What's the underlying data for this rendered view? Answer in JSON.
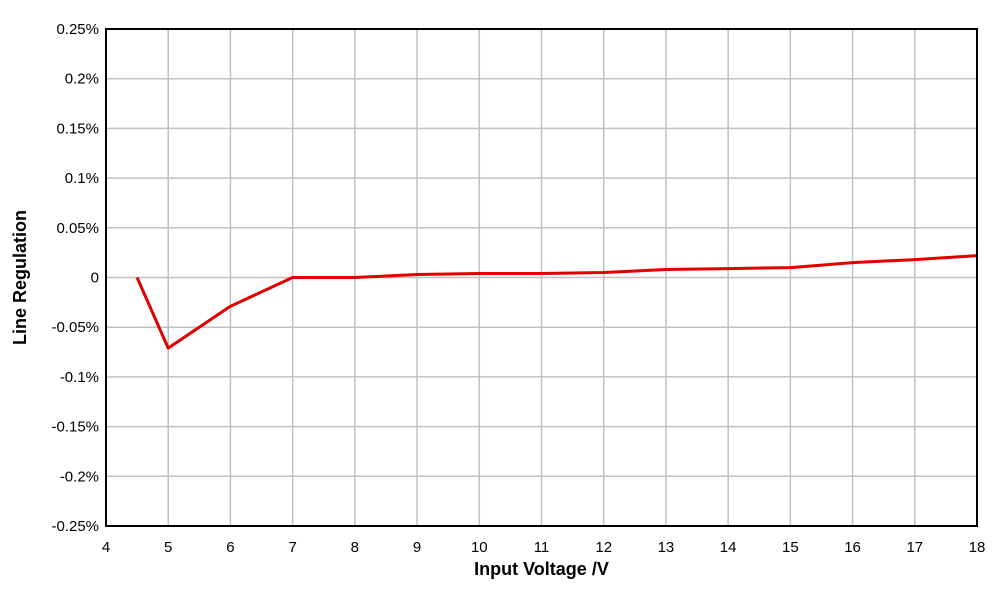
{
  "chart_data": {
    "type": "line",
    "title": "",
    "xlabel": "Input Voltage /V",
    "ylabel": "Line Regulation",
    "xlim": [
      4,
      18
    ],
    "ylim": [
      -0.25,
      0.25
    ],
    "x_ticks": [
      4,
      5,
      6,
      7,
      8,
      9,
      10,
      11,
      12,
      13,
      14,
      15,
      16,
      17,
      18
    ],
    "x_tick_labels": [
      "4",
      "5",
      "6",
      "7",
      "8",
      "9",
      "10",
      "11",
      "12",
      "13",
      "14",
      "15",
      "16",
      "17",
      "18"
    ],
    "y_ticks": [
      0.25,
      0.2,
      0.15,
      0.1,
      0.05,
      0,
      -0.05,
      -0.1,
      -0.15,
      -0.2,
      -0.25
    ],
    "y_tick_labels": [
      "0.25%",
      "0.2%",
      "0.15%",
      "0.1%",
      "0.05%",
      "0",
      "-0.05%",
      "-0.1%",
      "-0.15%",
      "-0.2%",
      "-0.25%"
    ],
    "grid": true,
    "legend": "none",
    "series": [
      {
        "color": "#e00000",
        "x": [
          4.5,
          5,
          6,
          7,
          8,
          9,
          10,
          11,
          12,
          13,
          14,
          15,
          16,
          17,
          18
        ],
        "y": [
          0.0,
          -0.071,
          -0.029,
          0.0,
          0.0,
          0.003,
          0.004,
          0.004,
          0.005,
          0.008,
          0.009,
          0.01,
          0.015,
          0.018,
          0.022
        ]
      }
    ]
  }
}
